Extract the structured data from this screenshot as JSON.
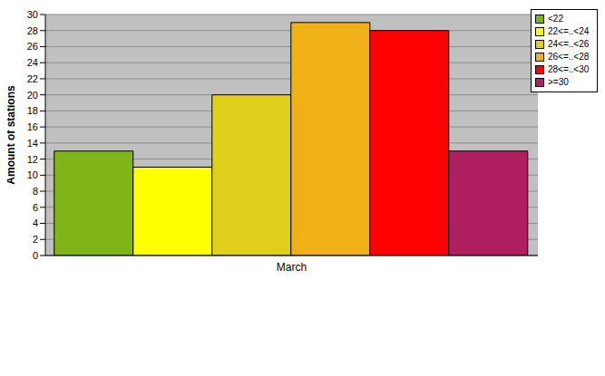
{
  "chart_data": {
    "type": "bar",
    "categories": [
      "March"
    ],
    "series": [
      {
        "name": "<22",
        "color": "#80b418",
        "values": [
          13
        ]
      },
      {
        "name": "22<=..<24",
        "color": "#ffff00",
        "values": [
          11
        ]
      },
      {
        "name": "24<=..<26",
        "color": "#e0d01c",
        "values": [
          20
        ]
      },
      {
        "name": "26<=..<28",
        "color": "#f0b018",
        "values": [
          29
        ]
      },
      {
        "name": "28<=..<30",
        "color": "#ff0000",
        "values": [
          28
        ]
      },
      {
        "name": ">=30",
        "color": "#b02060",
        "values": [
          13
        ]
      }
    ],
    "ylim": [
      0,
      30
    ],
    "yticks": [
      0,
      2,
      4,
      6,
      8,
      10,
      12,
      14,
      16,
      18,
      20,
      22,
      24,
      26,
      28,
      30
    ],
    "y_label": "Amount of stations",
    "grid": true,
    "legend": "top right"
  }
}
